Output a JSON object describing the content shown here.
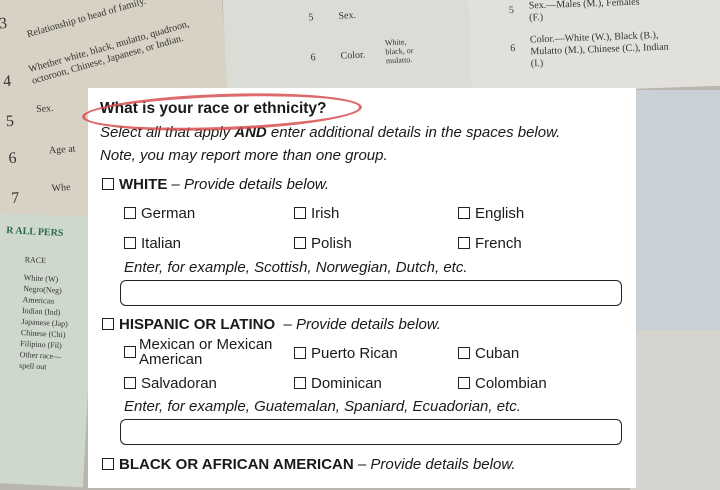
{
  "background": {
    "left_sheet": [
      "3",
      "Relationship to head of family.",
      "4",
      "Whether white, black, mulatto, quadroon, octoroon, Chinese, Japanese, or Indian.",
      "5",
      "Sex.",
      "6",
      "Age at",
      "7",
      "Whe"
    ],
    "mid_sheet": [
      "5",
      "Sex.",
      "6",
      "Color.",
      "White, black, or mulatto."
    ],
    "right_sheet": [
      "5",
      "Sex.—Males (M.), Females (F.)",
      "6",
      "Color.—White (W.), Black (B.), Mulatto (M.), Chinese (C.), Indian (I.)"
    ],
    "green_sheet": [
      "R ALL PERS",
      "RACE",
      "White (W)",
      "Negro(Neg)",
      "American Indian (Ind)",
      "Japanese (Jap)",
      "Chinese (Chi)",
      "Filipino (Fil)",
      "Other race—spell out"
    ]
  },
  "form": {
    "title": "What is your race or ethnicity?",
    "instructions": [
      "Select all that apply AND enter additional details in the spaces below.",
      "Note, you may report more than one group."
    ],
    "highlight_color": "#d6504f",
    "sections": [
      {
        "label": "WHITE",
        "hint": "– Provide details below.",
        "options": [
          "German",
          "Irish",
          "English",
          "Italian",
          "Polish",
          "French"
        ],
        "example": "Enter, for example, Scottish, Norwegian, Dutch, etc.",
        "input_value": ""
      },
      {
        "label": "HISPANIC OR LATINO",
        "hint": "– Provide details below.",
        "options": [
          "Mexican or Mexican American",
          "Puerto Rican",
          "Cuban",
          "Salvadoran",
          "Dominican",
          "Colombian"
        ],
        "example": "Enter, for example, Guatemalan, Spaniard, Ecuadorian, etc.",
        "input_value": ""
      },
      {
        "label": "BLACK OR AFRICAN AMERICAN",
        "hint": "– Provide details below."
      }
    ]
  }
}
